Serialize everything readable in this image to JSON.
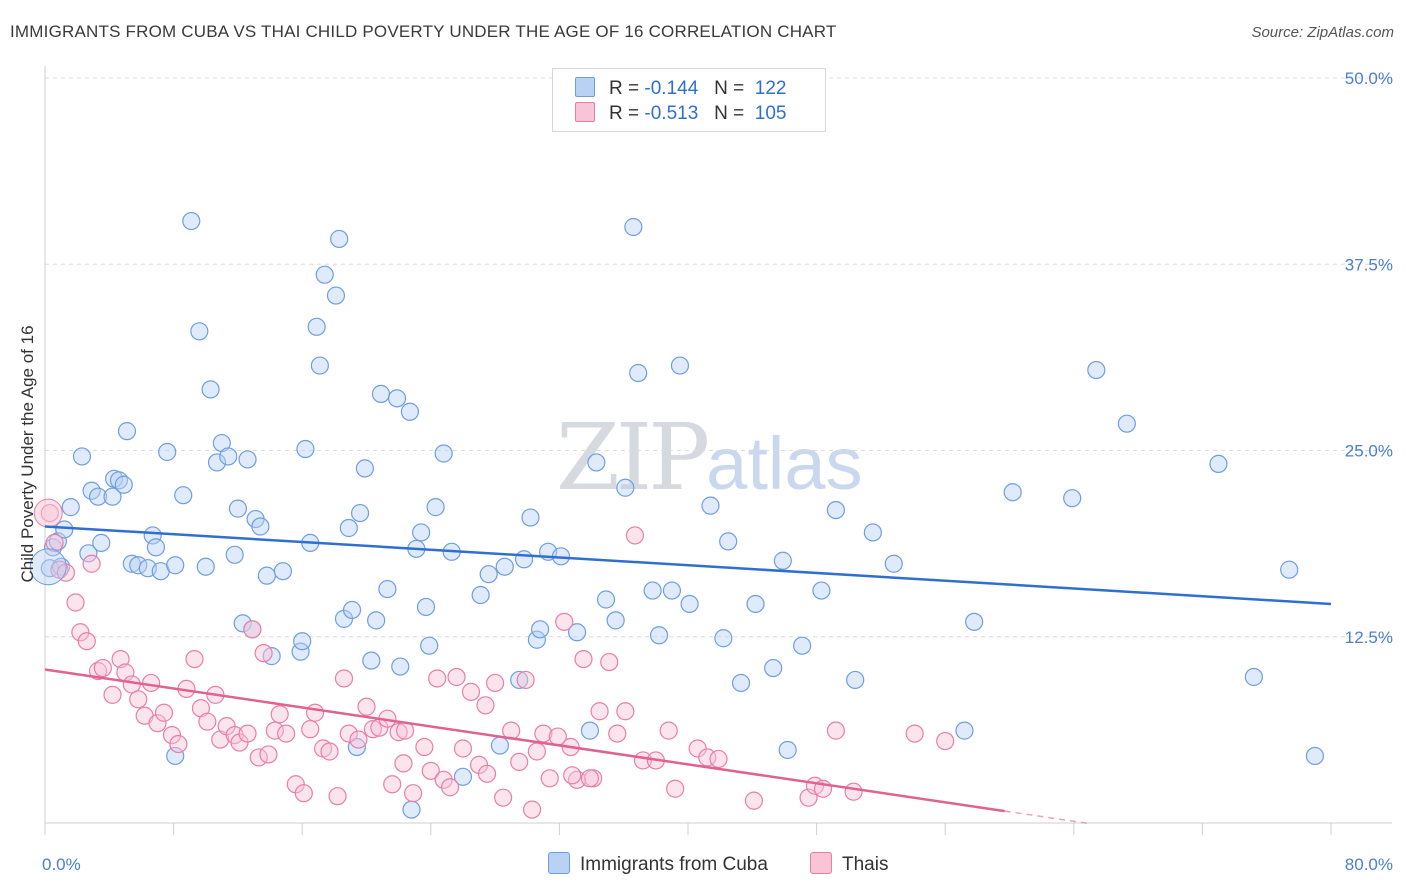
{
  "header": {
    "title": "IMMIGRANTS FROM CUBA VS THAI CHILD POVERTY UNDER THE AGE OF 16 CORRELATION CHART",
    "source": "Source: ZipAtlas.com"
  },
  "legend": {
    "rows": [
      {
        "r_label": "R =",
        "r_value": "-0.144",
        "n_label": "N =",
        "n_value": "122",
        "color": "#6f9ee0",
        "fill": "#b9d1f3"
      },
      {
        "r_label": "R =",
        "r_value": "-0.513",
        "n_label": "N =",
        "n_value": "105",
        "color": "#e97fa6",
        "fill": "#f8c4d6"
      }
    ]
  },
  "watermark": {
    "zip": "ZIP",
    "atlas": "atlas"
  },
  "chart_data": {
    "type": "scatter",
    "title": "IMMIGRANTS FROM CUBA VS THAI CHILD POVERTY UNDER THE AGE OF 16 CORRELATION CHART",
    "xlabel": "",
    "ylabel": "Child Poverty Under the Age of 16",
    "xlim": [
      0,
      80
    ],
    "ylim": [
      0,
      50
    ],
    "x_tick_labels": [
      "0.0%",
      "80.0%"
    ],
    "y_ticks": [
      12.5,
      25.0,
      37.5,
      50.0
    ],
    "y_tick_labels": [
      "12.5%",
      "25.0%",
      "37.5%",
      "50.0%"
    ],
    "grid": true,
    "legend_position": "top-center",
    "series": [
      {
        "name": "Immigrants from Cuba",
        "color": "#6f9ee0",
        "fill": "#b9d1f3",
        "trend": {
          "x": [
            0,
            80
          ],
          "y": [
            19.9,
            14.7
          ],
          "style": "solid",
          "color": "#2f6fd1"
        },
        "points": [
          [
            0.3,
            17.1
          ],
          [
            0.5,
            18.5
          ],
          [
            0.8,
            18.9
          ],
          [
            1.2,
            19.7
          ],
          [
            1.0,
            17.2
          ],
          [
            1.6,
            21.2
          ],
          [
            2.3,
            24.6
          ],
          [
            2.7,
            18.1
          ],
          [
            2.9,
            22.3
          ],
          [
            3.3,
            21.9
          ],
          [
            3.5,
            18.8
          ],
          [
            4.2,
            21.9
          ],
          [
            4.3,
            23.1
          ],
          [
            4.6,
            23.0
          ],
          [
            4.9,
            22.7
          ],
          [
            5.1,
            26.3
          ],
          [
            5.4,
            17.4
          ],
          [
            5.8,
            17.3
          ],
          [
            6.4,
            17.1
          ],
          [
            6.7,
            19.3
          ],
          [
            6.9,
            18.5
          ],
          [
            7.2,
            16.9
          ],
          [
            7.6,
            24.9
          ],
          [
            8.1,
            17.3
          ],
          [
            8.6,
            22.0
          ],
          [
            9.1,
            40.4
          ],
          [
            9.6,
            33.0
          ],
          [
            10.0,
            17.2
          ],
          [
            10.3,
            29.1
          ],
          [
            10.7,
            24.2
          ],
          [
            11.0,
            25.5
          ],
          [
            11.4,
            24.6
          ],
          [
            11.8,
            18.0
          ],
          [
            12.0,
            21.1
          ],
          [
            12.3,
            13.4
          ],
          [
            12.6,
            24.4
          ],
          [
            13.1,
            20.4
          ],
          [
            13.4,
            19.9
          ],
          [
            13.8,
            16.6
          ],
          [
            14.1,
            11.2
          ],
          [
            14.8,
            16.9
          ],
          [
            15.9,
            11.5
          ],
          [
            16.0,
            12.2
          ],
          [
            16.2,
            25.1
          ],
          [
            16.5,
            18.8
          ],
          [
            16.9,
            33.3
          ],
          [
            17.1,
            30.7
          ],
          [
            17.4,
            36.8
          ],
          [
            18.1,
            35.4
          ],
          [
            18.3,
            39.2
          ],
          [
            18.6,
            13.7
          ],
          [
            18.9,
            19.8
          ],
          [
            19.1,
            14.3
          ],
          [
            19.6,
            20.8
          ],
          [
            19.9,
            23.8
          ],
          [
            20.3,
            10.9
          ],
          [
            20.6,
            13.6
          ],
          [
            20.9,
            28.8
          ],
          [
            21.3,
            15.7
          ],
          [
            21.9,
            28.5
          ],
          [
            22.1,
            10.5
          ],
          [
            22.7,
            27.6
          ],
          [
            23.1,
            18.4
          ],
          [
            23.4,
            19.5
          ],
          [
            23.7,
            14.5
          ],
          [
            23.9,
            11.9
          ],
          [
            24.3,
            21.2
          ],
          [
            24.8,
            24.8
          ],
          [
            25.3,
            18.2
          ],
          [
            26.0,
            3.1
          ],
          [
            27.1,
            15.3
          ],
          [
            27.6,
            16.7
          ],
          [
            28.3,
            5.2
          ],
          [
            28.6,
            17.2
          ],
          [
            29.8,
            17.7
          ],
          [
            30.2,
            20.5
          ],
          [
            30.6,
            12.3
          ],
          [
            30.8,
            13.0
          ],
          [
            31.3,
            18.2
          ],
          [
            32.1,
            17.9
          ],
          [
            33.1,
            12.8
          ],
          [
            34.3,
            24.2
          ],
          [
            34.9,
            15.0
          ],
          [
            35.5,
            13.6
          ],
          [
            36.1,
            22.5
          ],
          [
            36.6,
            40.0
          ],
          [
            36.9,
            30.2
          ],
          [
            37.8,
            15.6
          ],
          [
            38.2,
            12.6
          ],
          [
            39.0,
            15.6
          ],
          [
            39.5,
            30.7
          ],
          [
            40.1,
            14.7
          ],
          [
            41.4,
            21.3
          ],
          [
            42.5,
            18.9
          ],
          [
            43.3,
            9.4
          ],
          [
            44.2,
            14.7
          ],
          [
            45.3,
            10.4
          ],
          [
            45.9,
            17.6
          ],
          [
            46.2,
            4.9
          ],
          [
            47.1,
            11.9
          ],
          [
            48.3,
            15.6
          ],
          [
            49.2,
            21.0
          ],
          [
            50.4,
            9.6
          ],
          [
            51.5,
            19.5
          ],
          [
            52.8,
            17.4
          ],
          [
            57.2,
            6.2
          ],
          [
            57.8,
            13.5
          ],
          [
            60.2,
            22.2
          ],
          [
            63.9,
            21.8
          ],
          [
            65.4,
            30.4
          ],
          [
            67.3,
            26.8
          ],
          [
            73.0,
            24.1
          ],
          [
            75.2,
            9.8
          ],
          [
            77.4,
            17.0
          ],
          [
            79.0,
            4.5
          ],
          [
            8.1,
            4.5
          ],
          [
            12.9,
            13.0
          ],
          [
            19.4,
            5.1
          ],
          [
            22.8,
            0.9
          ],
          [
            29.5,
            9.6
          ],
          [
            33.9,
            6.2
          ],
          [
            42.2,
            12.4
          ]
        ]
      },
      {
        "name": "Thais",
        "color": "#e97fa6",
        "fill": "#f8c4d6",
        "trend": {
          "x": [
            0,
            59.7
          ],
          "y": [
            10.3,
            0.8
          ],
          "x_dashed_end": 65,
          "style": "solid",
          "color": "#e0628f"
        },
        "points": [
          [
            0.3,
            20.8
          ],
          [
            0.6,
            18.8
          ],
          [
            0.9,
            17.0
          ],
          [
            1.3,
            16.8
          ],
          [
            1.9,
            14.8
          ],
          [
            2.2,
            12.8
          ],
          [
            2.6,
            12.2
          ],
          [
            2.9,
            17.4
          ],
          [
            3.3,
            10.2
          ],
          [
            3.6,
            10.4
          ],
          [
            4.2,
            8.6
          ],
          [
            4.7,
            11.0
          ],
          [
            5.0,
            10.1
          ],
          [
            5.4,
            9.3
          ],
          [
            5.8,
            8.3
          ],
          [
            6.2,
            7.2
          ],
          [
            6.6,
            9.4
          ],
          [
            7.0,
            6.7
          ],
          [
            7.4,
            7.4
          ],
          [
            7.9,
            5.9
          ],
          [
            8.3,
            5.3
          ],
          [
            8.8,
            9.0
          ],
          [
            9.3,
            11.0
          ],
          [
            9.7,
            7.7
          ],
          [
            10.1,
            6.8
          ],
          [
            10.6,
            8.6
          ],
          [
            10.9,
            5.6
          ],
          [
            11.3,
            6.5
          ],
          [
            11.8,
            5.9
          ],
          [
            12.1,
            5.4
          ],
          [
            12.6,
            6.0
          ],
          [
            12.9,
            13.0
          ],
          [
            13.3,
            4.4
          ],
          [
            13.6,
            11.4
          ],
          [
            13.9,
            4.6
          ],
          [
            14.3,
            6.2
          ],
          [
            14.6,
            7.3
          ],
          [
            15.0,
            6.0
          ],
          [
            15.6,
            2.6
          ],
          [
            16.1,
            2.0
          ],
          [
            16.5,
            6.3
          ],
          [
            16.8,
            7.4
          ],
          [
            17.3,
            5.0
          ],
          [
            17.7,
            4.8
          ],
          [
            18.2,
            1.8
          ],
          [
            18.6,
            9.7
          ],
          [
            18.9,
            6.0
          ],
          [
            19.5,
            5.6
          ],
          [
            20.0,
            7.8
          ],
          [
            20.4,
            6.3
          ],
          [
            20.8,
            6.4
          ],
          [
            21.3,
            7.0
          ],
          [
            21.6,
            2.6
          ],
          [
            22.0,
            6.1
          ],
          [
            22.4,
            6.2
          ],
          [
            22.9,
            2.0
          ],
          [
            23.6,
            5.1
          ],
          [
            24.0,
            3.5
          ],
          [
            24.4,
            9.7
          ],
          [
            24.8,
            2.9
          ],
          [
            25.2,
            2.4
          ],
          [
            25.6,
            9.8
          ],
          [
            26.0,
            5.0
          ],
          [
            26.5,
            8.8
          ],
          [
            27.0,
            3.9
          ],
          [
            27.4,
            7.9
          ],
          [
            28.0,
            9.4
          ],
          [
            28.5,
            1.7
          ],
          [
            29.0,
            6.2
          ],
          [
            29.5,
            4.1
          ],
          [
            29.9,
            9.6
          ],
          [
            30.3,
            0.9
          ],
          [
            30.6,
            4.8
          ],
          [
            31.0,
            6.0
          ],
          [
            31.4,
            3.0
          ],
          [
            31.9,
            5.8
          ],
          [
            32.3,
            13.5
          ],
          [
            32.7,
            5.1
          ],
          [
            33.1,
            2.9
          ],
          [
            33.5,
            11.0
          ],
          [
            34.1,
            3.0
          ],
          [
            34.5,
            7.5
          ],
          [
            35.1,
            10.8
          ],
          [
            35.6,
            6.0
          ],
          [
            36.1,
            7.5
          ],
          [
            36.7,
            19.3
          ],
          [
            37.2,
            4.2
          ],
          [
            38.0,
            4.2
          ],
          [
            38.8,
            6.2
          ],
          [
            39.2,
            2.3
          ],
          [
            40.6,
            5.0
          ],
          [
            41.2,
            4.4
          ],
          [
            44.1,
            1.5
          ],
          [
            47.5,
            1.7
          ],
          [
            47.9,
            2.5
          ],
          [
            48.4,
            2.3
          ],
          [
            49.2,
            6.2
          ],
          [
            50.3,
            2.1
          ],
          [
            54.1,
            6.0
          ],
          [
            56.0,
            5.5
          ],
          [
            32.8,
            3.2
          ],
          [
            33.9,
            3.0
          ],
          [
            22.3,
            4.0
          ],
          [
            41.9,
            4.3
          ],
          [
            27.5,
            3.3
          ]
        ]
      }
    ]
  },
  "bottom_legend": [
    {
      "label": "Immigrants from Cuba",
      "color": "#6f9ee0",
      "fill": "#b9d1f3"
    },
    {
      "label": "Thais",
      "color": "#e97fa6",
      "fill": "#f8c4d6"
    }
  ]
}
